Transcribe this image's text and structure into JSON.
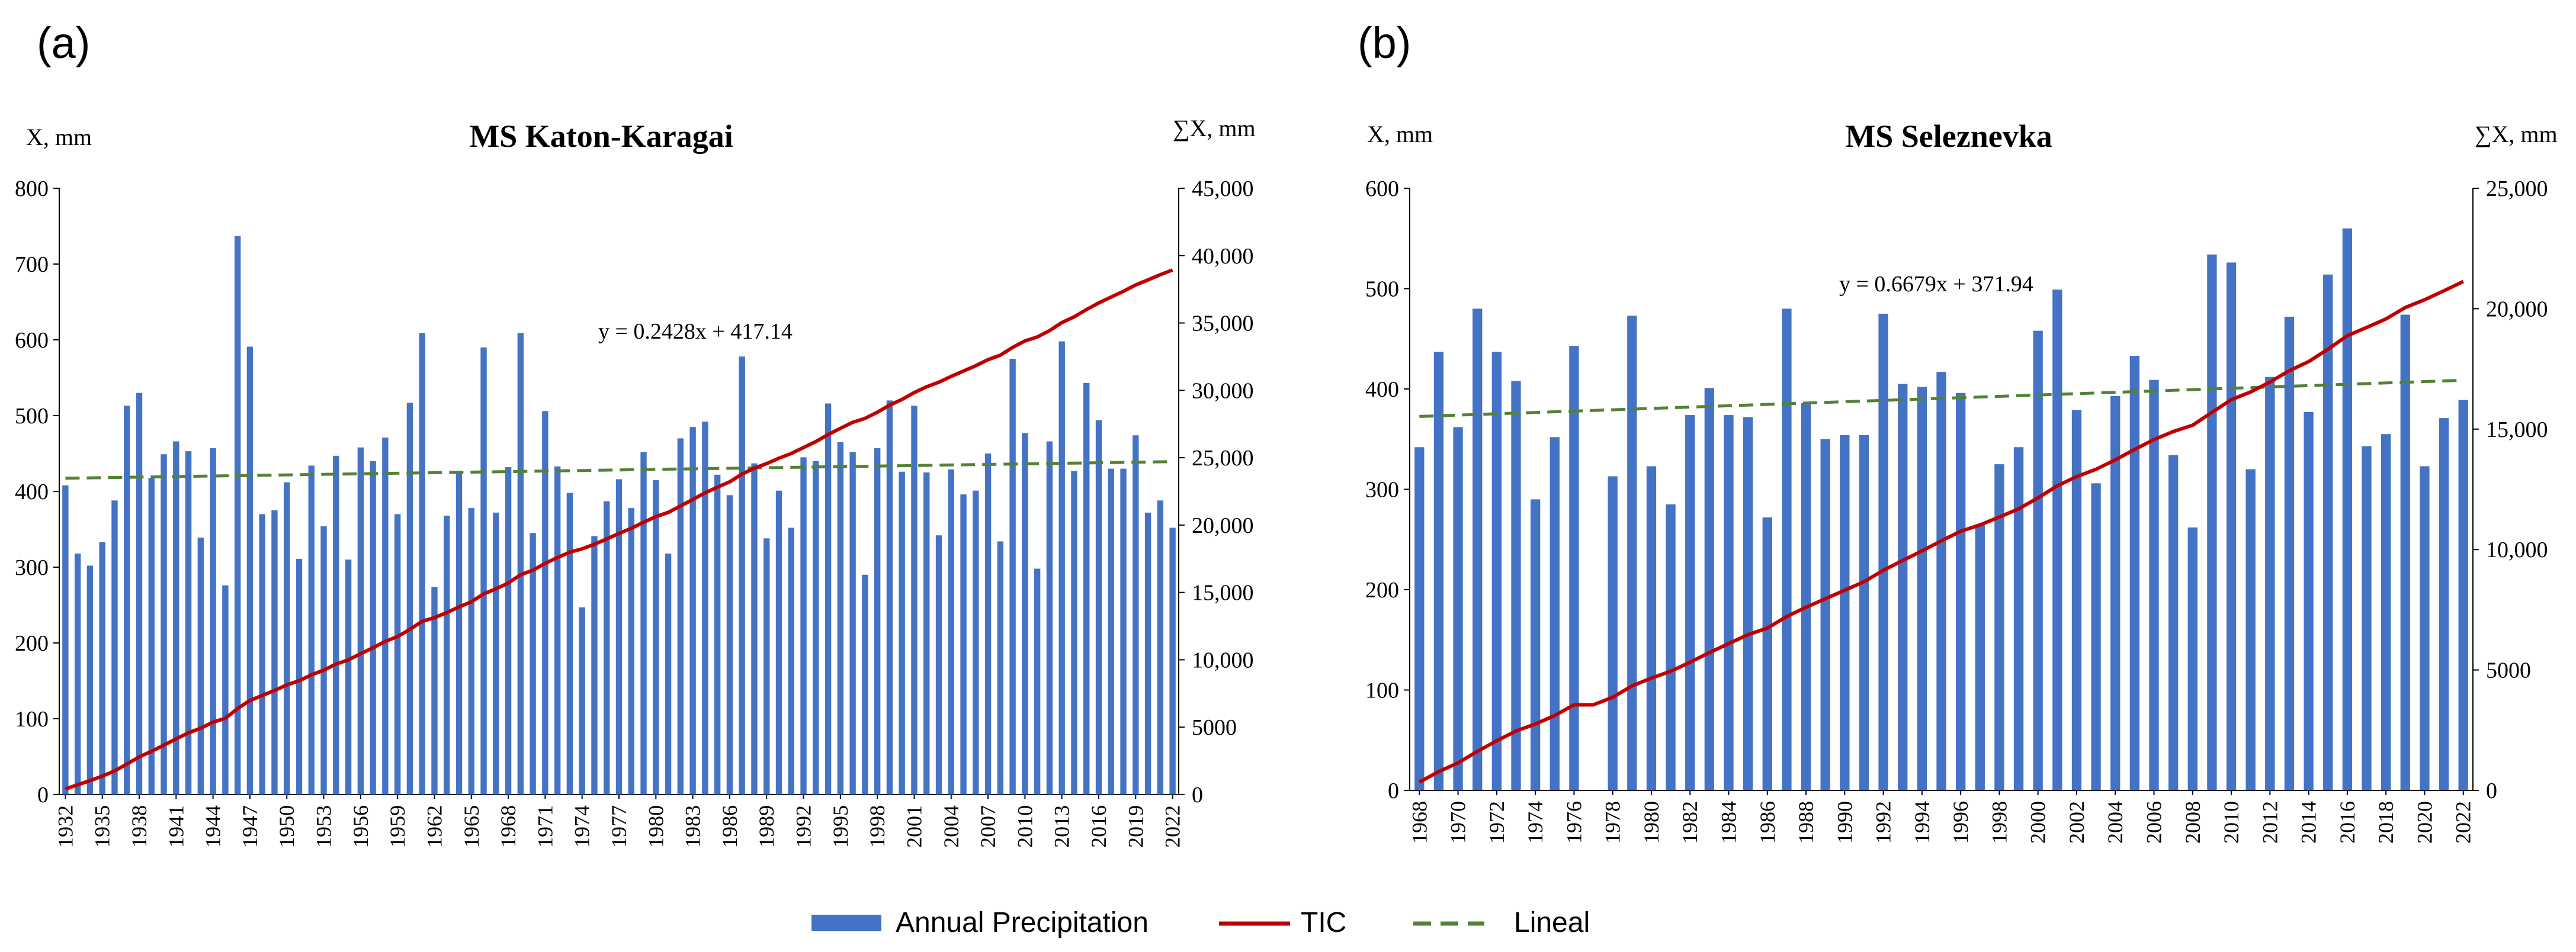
{
  "legend": {
    "bar": "Annual Precipitation",
    "tic": "TIC",
    "trend": "Lineal"
  },
  "colors": {
    "bar": "#4472C4",
    "tic": "#C00000",
    "trend": "#548235",
    "axis": "#000000"
  },
  "chart_data": [
    {
      "type": "bar",
      "panel_label": "(a)",
      "title": "MS Katon-Karagai",
      "ylabel": "X, mm",
      "y2label": "∑X, mm",
      "ylim": [
        0,
        800
      ],
      "y2lim": [
        0,
        45000
      ],
      "yticks": [
        "0",
        "100",
        "200",
        "300",
        "400",
        "500",
        "600",
        "700",
        "800"
      ],
      "y2ticks": [
        "0",
        "5000",
        "10,000",
        "15,000",
        "20,000",
        "25,000",
        "30,000",
        "35,000",
        "40,000",
        "45,000"
      ],
      "xtick_labels": [
        "1932",
        "1935",
        "1938",
        "1941",
        "1944",
        "1947",
        "1950",
        "1953",
        "1956",
        "1959",
        "1962",
        "1965",
        "1968",
        "1971",
        "1974",
        "1977",
        "1980",
        "1983",
        "1986",
        "1989",
        "1992",
        "1995",
        "1998",
        "2001",
        "2004",
        "2007",
        "2010",
        "2013",
        "2016",
        "2019",
        "2022"
      ],
      "equation": "y = 0.2428x + 417.14",
      "trend": {
        "slope": 0.2428,
        "intercept": 417.14
      },
      "x": [
        1932,
        1933,
        1934,
        1935,
        1936,
        1937,
        1938,
        1939,
        1940,
        1941,
        1942,
        1943,
        1944,
        1945,
        1946,
        1947,
        1948,
        1949,
        1950,
        1951,
        1952,
        1953,
        1954,
        1955,
        1956,
        1957,
        1958,
        1959,
        1960,
        1961,
        1962,
        1963,
        1964,
        1965,
        1966,
        1967,
        1968,
        1969,
        1970,
        1971,
        1972,
        1973,
        1974,
        1975,
        1976,
        1977,
        1978,
        1979,
        1980,
        1981,
        1982,
        1983,
        1984,
        1985,
        1986,
        1987,
        1988,
        1989,
        1990,
        1991,
        1992,
        1993,
        1994,
        1995,
        1996,
        1997,
        1998,
        1999,
        2000,
        2001,
        2002,
        2003,
        2004,
        2005,
        2006,
        2007,
        2008,
        2009,
        2010,
        2011,
        2012,
        2013,
        2014,
        2015,
        2016,
        2017,
        2018,
        2019,
        2020,
        2021,
        2022
      ],
      "series": [
        {
          "name": "Annual Precipitation",
          "values": [
            408,
            318,
            302,
            333,
            388,
            513,
            530,
            418,
            449,
            466,
            453,
            339,
            457,
            276,
            737,
            591,
            370,
            375,
            412,
            311,
            434,
            354,
            447,
            310,
            458,
            440,
            471,
            370,
            517,
            609,
            274,
            368,
            427,
            378,
            590,
            372,
            432,
            609,
            345,
            506,
            433,
            398,
            247,
            341,
            387,
            416,
            378,
            452,
            415,
            318,
            470,
            485,
            492,
            422,
            395,
            578,
            437,
            338,
            401,
            352,
            445,
            440,
            516,
            465,
            452,
            290,
            457,
            520,
            426,
            513,
            425,
            342,
            429,
            396,
            401,
            450,
            334,
            575,
            477,
            298,
            466,
            598,
            427,
            543,
            494,
            430,
            430,
            474,
            372,
            388,
            352
          ]
        },
        {
          "name": "TIC",
          "values": [
            408,
            726,
            1028,
            1361,
            1749,
            2262,
            2792,
            3210,
            3659,
            4125,
            4578,
            4917,
            5374,
            5650,
            6387,
            6978,
            7348,
            7723,
            8135,
            8446,
            8880,
            9234,
            9681,
            9991,
            10449,
            10889,
            11360,
            11730,
            12247,
            12856,
            13130,
            13498,
            13925,
            14303,
            14893,
            15265,
            15697,
            16306,
            16651,
            17157,
            17590,
            17988,
            18235,
            18576,
            18963,
            19379,
            19757,
            20209,
            20624,
            20942,
            21412,
            21897,
            22389,
            22811,
            23206,
            23784,
            24221,
            24559,
            24960,
            25312,
            25757,
            26197,
            26713,
            27178,
            27630,
            27920,
            28377,
            28897,
            29323,
            29836,
            30261,
            30603,
            31032,
            31428,
            31829,
            32279,
            32613,
            33188,
            33665,
            33963,
            34429,
            35027,
            35454,
            35997,
            36491,
            36921,
            37351,
            37825,
            38197,
            38585,
            38937
          ]
        }
      ]
    },
    {
      "type": "bar",
      "panel_label": "(b)",
      "title": "MS Seleznevka",
      "ylabel": "X, mm",
      "y2label": "∑X, mm",
      "ylim": [
        0,
        600
      ],
      "y2lim": [
        0,
        25000
      ],
      "yticks": [
        "0",
        "100",
        "200",
        "300",
        "400",
        "500",
        "600"
      ],
      "y2ticks": [
        "0",
        "5000",
        "10,000",
        "15,000",
        "20,000",
        "25,000"
      ],
      "xtick_labels": [
        "1968",
        "1970",
        "1972",
        "1974",
        "1976",
        "1978",
        "1980",
        "1982",
        "1984",
        "1986",
        "1988",
        "1990",
        "1992",
        "1994",
        "1996",
        "1998",
        "2000",
        "2002",
        "2004",
        "2006",
        "2008",
        "2010",
        "2012",
        "2014",
        "2016",
        "2018",
        "2020",
        "2022"
      ],
      "equation": "y = 0.6679x + 371.94",
      "trend": {
        "slope": 0.6679,
        "intercept": 371.94
      },
      "x": [
        1968,
        1969,
        1970,
        1971,
        1972,
        1973,
        1974,
        1975,
        1976,
        1977,
        1978,
        1979,
        1980,
        1981,
        1982,
        1983,
        1984,
        1985,
        1986,
        1987,
        1988,
        1989,
        1990,
        1991,
        1992,
        1993,
        1994,
        1995,
        1996,
        1997,
        1998,
        1999,
        2000,
        2001,
        2002,
        2003,
        2004,
        2005,
        2006,
        2007,
        2008,
        2009,
        2010,
        2011,
        2012,
        2013,
        2014,
        2015,
        2016,
        2017,
        2018,
        2019,
        2020,
        2021,
        2022
      ],
      "series": [
        {
          "name": "Annual Precipitation",
          "values": [
            342,
            437,
            362,
            480,
            437,
            408,
            290,
            352,
            443,
            0,
            313,
            473,
            323,
            285,
            374,
            401,
            374,
            372,
            272,
            480,
            386,
            350,
            354,
            354,
            475,
            405,
            402,
            417,
            396,
            265,
            325,
            342,
            458,
            499,
            379,
            306,
            393,
            433,
            409,
            334,
            262,
            534,
            526,
            320,
            412,
            472,
            377,
            514,
            560,
            343,
            355,
            474,
            323,
            371,
            389
          ]
        },
        {
          "name": "TIC",
          "values": [
            342,
            779,
            1141,
            1621,
            2058,
            2466,
            2756,
            3108,
            3551,
            3551,
            3864,
            4337,
            4660,
            4945,
            5319,
            5720,
            6094,
            6466,
            6738,
            7218,
            7604,
            7954,
            8308,
            8662,
            9137,
            9542,
            9944,
            10361,
            10757,
            11022,
            11347,
            11689,
            12147,
            12646,
            13025,
            13331,
            13724,
            14157,
            14566,
            14900,
            15162,
            15696,
            16222,
            16542,
            16954,
            17426,
            17803,
            18317,
            18877,
            19220,
            19575,
            20049,
            20372,
            20743,
            21132
          ]
        }
      ]
    }
  ]
}
